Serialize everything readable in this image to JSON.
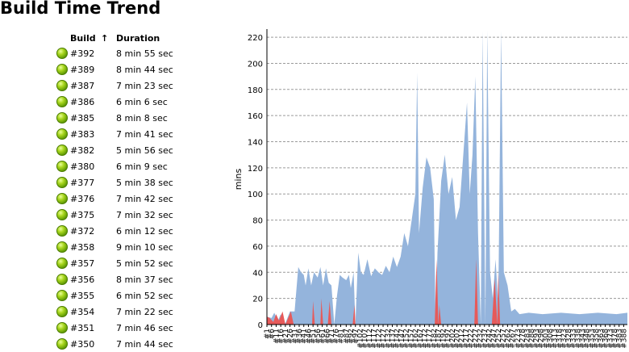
{
  "page": {
    "title": "Build Time Trend"
  },
  "table": {
    "headers": {
      "build": "Build",
      "sort_arrow": "↑",
      "duration": "Duration"
    },
    "status_icon": "green-ball-icon",
    "rows": [
      {
        "build": "#392",
        "duration": "8 min 55 sec"
      },
      {
        "build": "#389",
        "duration": "8 min 44 sec"
      },
      {
        "build": "#387",
        "duration": "7 min 23 sec"
      },
      {
        "build": "#386",
        "duration": "6 min 6 sec"
      },
      {
        "build": "#385",
        "duration": "8 min 8 sec"
      },
      {
        "build": "#383",
        "duration": "7 min 41 sec"
      },
      {
        "build": "#382",
        "duration": "5 min 56 sec"
      },
      {
        "build": "#380",
        "duration": "6 min 9 sec"
      },
      {
        "build": "#377",
        "duration": "5 min 38 sec"
      },
      {
        "build": "#376",
        "duration": "7 min 42 sec"
      },
      {
        "build": "#375",
        "duration": "7 min 32 sec"
      },
      {
        "build": "#372",
        "duration": "6 min 12 sec"
      },
      {
        "build": "#358",
        "duration": "9 min 10 sec"
      },
      {
        "build": "#357",
        "duration": "5 min 52 sec"
      },
      {
        "build": "#356",
        "duration": "8 min 37 sec"
      },
      {
        "build": "#355",
        "duration": "6 min 52 sec"
      },
      {
        "build": "#354",
        "duration": "7 min 22 sec"
      },
      {
        "build": "#351",
        "duration": "7 min 46 sec"
      },
      {
        "build": "#350",
        "duration": "7 min 44 sec"
      }
    ]
  },
  "chart_data": {
    "type": "area",
    "ylabel": "mins",
    "ylim": [
      0,
      225
    ],
    "yticks": [
      0,
      20,
      40,
      60,
      80,
      100,
      120,
      140,
      160,
      180,
      200,
      220
    ],
    "grid": true,
    "colors": {
      "success": "#94b4dc",
      "failure": "#e65a5a",
      "grid": "#9a9a9a"
    },
    "xlim": [
      1,
      392
    ],
    "xticks": [
      "#1",
      "#6",
      "#11",
      "#16",
      "#21",
      "#26",
      "#31",
      "#36",
      "#41",
      "#46",
      "#51",
      "#56",
      "#61",
      "#66",
      "#71",
      "#76",
      "#81",
      "#87",
      "#92",
      "#97",
      "#102",
      "#107",
      "#112",
      "#117",
      "#122",
      "#127",
      "#132",
      "#137",
      "#142",
      "#147",
      "#152",
      "#157",
      "#162",
      "#167",
      "#172",
      "#177",
      "#182",
      "#187",
      "#192",
      "#197",
      "#202",
      "#207",
      "#212",
      "#217",
      "#222",
      "#227",
      "#232",
      "#237",
      "#242",
      "#247",
      "#252",
      "#257",
      "#262",
      "#267",
      "#273",
      "#278",
      "#283",
      "#288",
      "#293",
      "#298",
      "#303",
      "#308",
      "#313",
      "#318",
      "#323",
      "#328",
      "#333",
      "#338",
      "#343",
      "#348",
      "#353",
      "#358",
      "#363",
      "#368",
      "#373",
      "#378",
      "#383",
      "#388"
    ],
    "success_points": [
      [
        1,
        6
      ],
      [
        6,
        5
      ],
      [
        9,
        9
      ],
      [
        13,
        3
      ],
      [
        16,
        8
      ],
      [
        21,
        1
      ],
      [
        26,
        10
      ],
      [
        31,
        10
      ],
      [
        35,
        44
      ],
      [
        38,
        40
      ],
      [
        41,
        38
      ],
      [
        43,
        30
      ],
      [
        46,
        43
      ],
      [
        49,
        30
      ],
      [
        52,
        40
      ],
      [
        56,
        36
      ],
      [
        59,
        44
      ],
      [
        62,
        30
      ],
      [
        65,
        43
      ],
      [
        68,
        32
      ],
      [
        71,
        30
      ],
      [
        74,
        0
      ],
      [
        77,
        22
      ],
      [
        80,
        38
      ],
      [
        83,
        36
      ],
      [
        87,
        34
      ],
      [
        90,
        38
      ],
      [
        92,
        28
      ],
      [
        95,
        40
      ],
      [
        97,
        0
      ],
      [
        100,
        55
      ],
      [
        103,
        40
      ],
      [
        106,
        38
      ],
      [
        110,
        50
      ],
      [
        114,
        37
      ],
      [
        118,
        43
      ],
      [
        122,
        40
      ],
      [
        126,
        38
      ],
      [
        130,
        45
      ],
      [
        134,
        40
      ],
      [
        138,
        52
      ],
      [
        142,
        44
      ],
      [
        146,
        52
      ],
      [
        150,
        70
      ],
      [
        154,
        60
      ],
      [
        158,
        80
      ],
      [
        162,
        100
      ],
      [
        164,
        193
      ],
      [
        166,
        70
      ],
      [
        170,
        105
      ],
      [
        174,
        128
      ],
      [
        178,
        120
      ],
      [
        182,
        96
      ],
      [
        184,
        0
      ],
      [
        186,
        55
      ],
      [
        190,
        110
      ],
      [
        194,
        130
      ],
      [
        198,
        100
      ],
      [
        202,
        113
      ],
      [
        206,
        80
      ],
      [
        210,
        90
      ],
      [
        214,
        130
      ],
      [
        218,
        170
      ],
      [
        221,
        100
      ],
      [
        224,
        130
      ],
      [
        227,
        190
      ],
      [
        230,
        70
      ],
      [
        233,
        0
      ],
      [
        235,
        225
      ],
      [
        238,
        0
      ],
      [
        240,
        225
      ],
      [
        243,
        40
      ],
      [
        246,
        20
      ],
      [
        249,
        50
      ],
      [
        252,
        15
      ],
      [
        255,
        225
      ],
      [
        258,
        40
      ],
      [
        262,
        30
      ],
      [
        266,
        10
      ],
      [
        270,
        12
      ],
      [
        275,
        8
      ],
      [
        285,
        9
      ],
      [
        300,
        8
      ],
      [
        320,
        9
      ],
      [
        340,
        8
      ],
      [
        360,
        9
      ],
      [
        380,
        8
      ],
      [
        392,
        9
      ]
    ],
    "failure_points": [
      [
        1,
        6
      ],
      [
        4,
        5
      ],
      [
        8,
        2
      ],
      [
        11,
        8
      ],
      [
        14,
        3
      ],
      [
        18,
        10
      ],
      [
        21,
        0
      ],
      [
        27,
        10
      ],
      [
        30,
        0
      ],
      [
        50,
        0
      ],
      [
        51,
        18
      ],
      [
        53,
        0
      ],
      [
        59,
        0
      ],
      [
        60,
        20
      ],
      [
        62,
        0
      ],
      [
        67,
        0
      ],
      [
        69,
        18
      ],
      [
        71,
        0
      ],
      [
        94,
        0
      ],
      [
        96,
        15
      ],
      [
        97,
        0
      ],
      [
        183,
        0
      ],
      [
        185,
        50
      ],
      [
        187,
        0
      ],
      [
        188,
        15
      ],
      [
        190,
        0
      ],
      [
        226,
        0
      ],
      [
        228,
        50
      ],
      [
        230,
        0
      ],
      [
        245,
        0
      ],
      [
        248,
        35
      ],
      [
        251,
        0
      ],
      [
        252,
        40
      ],
      [
        254,
        0
      ]
    ]
  }
}
